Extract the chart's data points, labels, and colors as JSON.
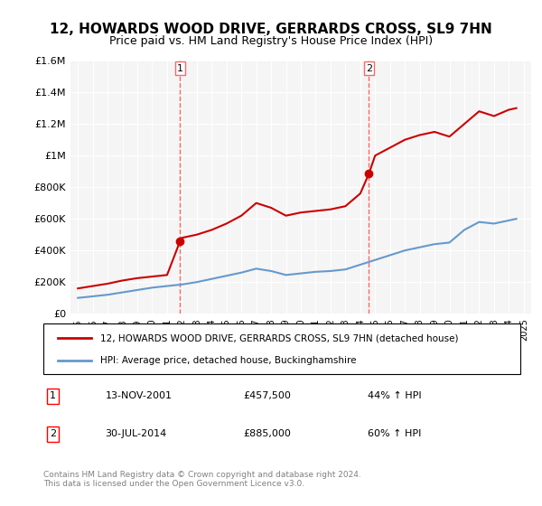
{
  "title": "12, HOWARDS WOOD DRIVE, GERRARDS CROSS, SL9 7HN",
  "subtitle": "Price paid vs. HM Land Registry's House Price Index (HPI)",
  "property_label": "12, HOWARDS WOOD DRIVE, GERRARDS CROSS, SL9 7HN (detached house)",
  "hpi_label": "HPI: Average price, detached house, Buckinghamshire",
  "sale1_date": "13-NOV-2001",
  "sale1_price": 457500,
  "sale1_pct": "44%",
  "sale2_date": "30-JUL-2014",
  "sale2_price": 885000,
  "sale2_pct": "60%",
  "footer": "Contains HM Land Registry data © Crown copyright and database right 2024.\nThis data is licensed under the Open Government Licence v3.0.",
  "property_color": "#cc0000",
  "hpi_color": "#6699cc",
  "vline_color": "#ff6666",
  "background_color": "#f5f5f5",
  "ylim": [
    0,
    1600000
  ],
  "yticks": [
    0,
    200000,
    400000,
    600000,
    800000,
    1000000,
    1200000,
    1400000,
    1600000
  ],
  "ytick_labels": [
    "£0",
    "£200K",
    "£400K",
    "£600K",
    "£800K",
    "£1M",
    "£1.2M",
    "£1.4M",
    "£1.6M"
  ],
  "sale1_x": 2001.87,
  "sale2_x": 2014.58,
  "property_years": [
    1995,
    1996,
    1997,
    1998,
    1999,
    2000,
    2001,
    2001.87,
    2002,
    2003,
    2004,
    2005,
    2006,
    2007,
    2008,
    2009,
    2010,
    2011,
    2012,
    2013,
    2014,
    2014.58,
    2015,
    2016,
    2017,
    2018,
    2019,
    2020,
    2021,
    2022,
    2023,
    2024,
    2024.5
  ],
  "property_values": [
    160000,
    175000,
    190000,
    210000,
    225000,
    235000,
    245000,
    457500,
    480000,
    500000,
    530000,
    570000,
    620000,
    700000,
    670000,
    620000,
    640000,
    650000,
    660000,
    680000,
    760000,
    885000,
    1000000,
    1050000,
    1100000,
    1130000,
    1150000,
    1120000,
    1200000,
    1280000,
    1250000,
    1290000,
    1300000
  ],
  "hpi_years": [
    1995,
    1996,
    1997,
    1998,
    1999,
    2000,
    2001,
    2002,
    2003,
    2004,
    2005,
    2006,
    2007,
    2008,
    2009,
    2010,
    2011,
    2012,
    2013,
    2014,
    2015,
    2016,
    2017,
    2018,
    2019,
    2020,
    2021,
    2022,
    2023,
    2024,
    2024.5
  ],
  "hpi_values": [
    100000,
    110000,
    120000,
    135000,
    150000,
    165000,
    175000,
    185000,
    200000,
    220000,
    240000,
    260000,
    285000,
    270000,
    245000,
    255000,
    265000,
    270000,
    280000,
    310000,
    340000,
    370000,
    400000,
    420000,
    440000,
    450000,
    530000,
    580000,
    570000,
    590000,
    600000
  ]
}
